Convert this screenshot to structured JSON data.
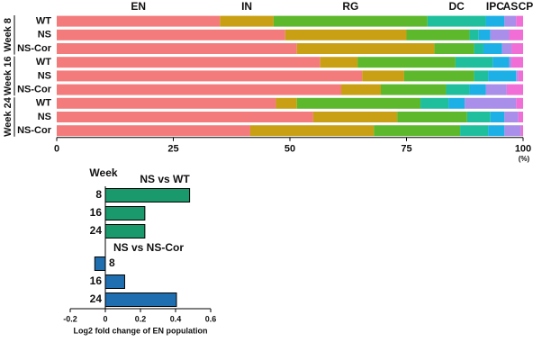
{
  "chart_data": [
    {
      "type": "stacked_bar",
      "orientation": "horizontal",
      "categories": [
        "WT",
        "NS",
        "NS-Cor",
        "WT",
        "NS",
        "NS-Cor",
        "WT",
        "NS",
        "NS-Cor"
      ],
      "groups": [
        "Week 8",
        "Week 16",
        "Week 24"
      ],
      "series": [
        {
          "name": "EN",
          "color": "#f47b7b",
          "values": [
            35,
            49,
            51.5,
            56.5,
            65.5,
            61,
            47,
            55,
            41.5
          ]
        },
        {
          "name": "IN",
          "color": "#c9a013",
          "values": [
            11.5,
            26,
            29.5,
            8,
            9,
            8.5,
            4.5,
            18,
            26.5
          ]
        },
        {
          "name": "RG",
          "color": "#5db82c",
          "values": [
            33,
            13.5,
            8.5,
            21,
            15,
            14,
            26.5,
            15,
            18.5
          ]
        },
        {
          "name": "DC",
          "color": "#1fbf9d",
          "values": [
            12.5,
            2,
            2,
            8,
            3,
            5,
            6,
            5,
            6
          ]
        },
        {
          "name": "IPC",
          "color": "#1cb0e6",
          "values": [
            4,
            2.5,
            4,
            3.5,
            6,
            3.5,
            3.5,
            3,
            3.5
          ]
        },
        {
          "name": "AS",
          "color": "#a98eea",
          "values": [
            2.5,
            4,
            2,
            0.5,
            0.5,
            4.5,
            11,
            3,
            3.5
          ]
        },
        {
          "name": "CP",
          "color": "#f06ed6",
          "values": [
            1.5,
            3,
            2.5,
            2.5,
            1,
            3.5,
            1.5,
            1,
            0.5
          ]
        }
      ],
      "xlim": [
        0,
        100
      ],
      "xticks": [
        0,
        25,
        50,
        75,
        100
      ],
      "x_label": "(%)"
    },
    {
      "type": "bar",
      "orientation": "horizontal",
      "y_label": "Week",
      "categories": [
        "8",
        "16",
        "24"
      ],
      "series": [
        {
          "name": "NS vs WT",
          "color": "#1a9a6c",
          "values": [
            0.48,
            0.225,
            0.225
          ]
        },
        {
          "name": "NS vs NS-Cor",
          "color": "#1f6fb0",
          "values": [
            -0.06,
            0.11,
            0.405
          ]
        }
      ],
      "xlim": [
        -0.2,
        0.6
      ],
      "xticks": [
        -0.2,
        0,
        0.2,
        0.4,
        0.6
      ],
      "x_label": "Log2 fold change of EN population"
    }
  ]
}
